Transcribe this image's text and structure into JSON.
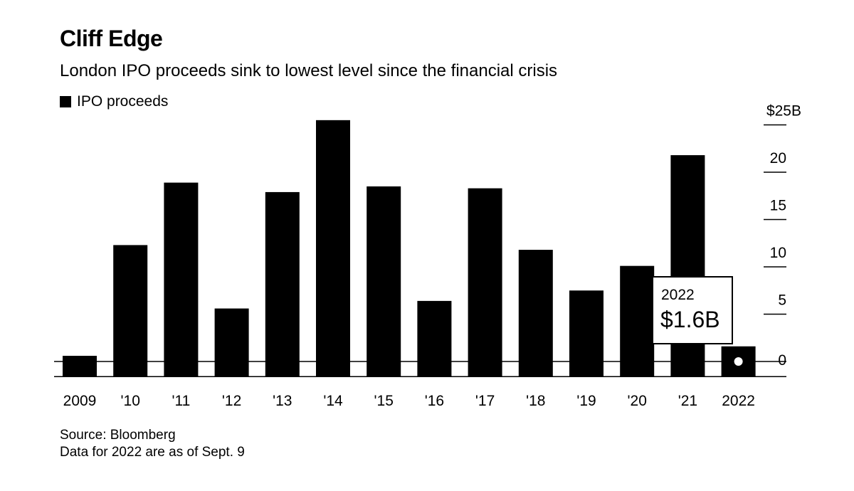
{
  "header": {
    "title": "Cliff Edge",
    "subtitle": "London IPO proceeds sink to lowest level since the financial crisis"
  },
  "legend": {
    "label": "IPO proceeds"
  },
  "colors": {
    "bar": "#000000",
    "background": "#ffffff"
  },
  "chart_data": {
    "type": "bar",
    "title": "Cliff Edge",
    "subtitle": "London IPO proceeds sink to lowest level since the financial crisis",
    "categories": [
      "2009",
      "'10",
      "'11",
      "'12",
      "'13",
      "'14",
      "'15",
      "'16",
      "'17",
      "'18",
      "'19",
      "'20",
      "'21",
      "2022"
    ],
    "series": [
      {
        "name": "IPO proceeds",
        "values": [
          0.6,
          12.3,
          18.9,
          5.6,
          17.9,
          25.5,
          18.5,
          6.4,
          18.3,
          11.8,
          7.5,
          10.1,
          21.8,
          1.6
        ]
      }
    ],
    "yticks": [
      "$25B",
      "20",
      "15",
      "10",
      "5",
      "0"
    ],
    "ytick_values": [
      25,
      20,
      15,
      10,
      5,
      0
    ],
    "ylim": [
      -1.6,
      27
    ],
    "y_axis_side": "right",
    "grid": false,
    "legend_position": "top-left",
    "callout": {
      "category": "2022",
      "label": "2022",
      "value": "$1.6B"
    }
  },
  "footer": {
    "source": "Source: Bloomberg",
    "note": "Data for 2022 are as of Sept. 9"
  }
}
